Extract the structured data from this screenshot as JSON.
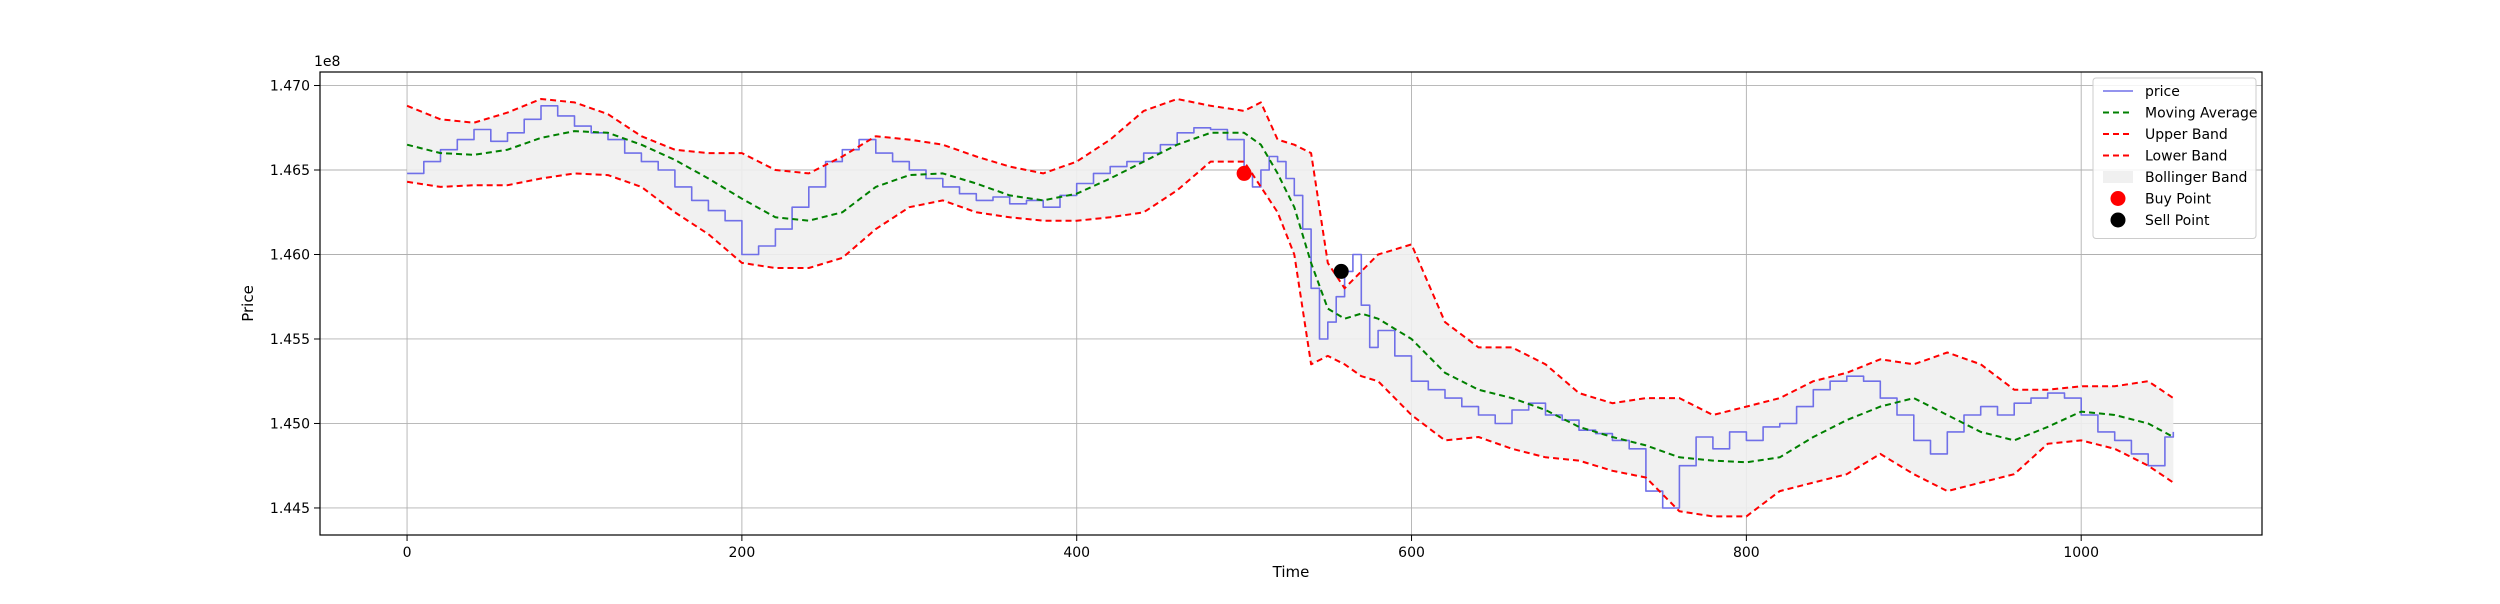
{
  "chart_data": {
    "type": "line",
    "title": "",
    "xlabel": "Time",
    "ylabel": "Price",
    "y_offset_label": "1e8",
    "xlim": [
      -52,
      1108
    ],
    "ylim": [
      1.4434,
      1.4708
    ],
    "x_ticks": [
      0,
      200,
      400,
      600,
      800,
      1000
    ],
    "x_tick_labels": [
      "0",
      "200",
      "400",
      "600",
      "800",
      "1000"
    ],
    "y_ticks": [
      1.445,
      1.45,
      1.455,
      1.46,
      1.465,
      1.47
    ],
    "y_tick_labels": [
      "1.445",
      "1.450",
      "1.455",
      "1.460",
      "1.465",
      "1.470"
    ],
    "grid": true,
    "legend_position": "top-right",
    "colors": {
      "price": "#7070e8",
      "moving_average": "#008000",
      "bands": "#ff0000",
      "band_fill": "#f0f0f0",
      "buy": "#ff0000",
      "sell": "#000000"
    },
    "series": [
      {
        "name": "price",
        "style": "solid",
        "x": [
          0,
          10,
          20,
          30,
          40,
          50,
          60,
          70,
          80,
          90,
          100,
          110,
          120,
          130,
          140,
          150,
          160,
          170,
          180,
          190,
          200,
          210,
          220,
          230,
          240,
          250,
          260,
          270,
          280,
          290,
          300,
          310,
          320,
          330,
          340,
          350,
          360,
          370,
          380,
          390,
          400,
          410,
          420,
          430,
          440,
          450,
          460,
          470,
          480,
          490,
          500,
          505,
          510,
          515,
          520,
          525,
          530,
          535,
          540,
          545,
          550,
          555,
          560,
          565,
          570,
          575,
          580,
          590,
          600,
          610,
          620,
          630,
          640,
          650,
          660,
          670,
          680,
          690,
          700,
          710,
          720,
          730,
          740,
          750,
          760,
          770,
          780,
          790,
          800,
          810,
          820,
          830,
          840,
          850,
          860,
          870,
          880,
          890,
          900,
          910,
          920,
          930,
          940,
          950,
          960,
          970,
          980,
          990,
          1000,
          1010,
          1020,
          1030,
          1040,
          1050,
          1055
        ],
        "values": [
          1.4648,
          1.4655,
          1.4662,
          1.4668,
          1.4674,
          1.4667,
          1.4672,
          1.468,
          1.4688,
          1.4682,
          1.4676,
          1.4672,
          1.4668,
          1.466,
          1.4655,
          1.465,
          1.464,
          1.4632,
          1.4626,
          1.462,
          1.46,
          1.4605,
          1.4615,
          1.4628,
          1.464,
          1.4655,
          1.4662,
          1.4668,
          1.466,
          1.4655,
          1.465,
          1.4645,
          1.464,
          1.4636,
          1.4632,
          1.4634,
          1.463,
          1.4632,
          1.4628,
          1.4635,
          1.4642,
          1.4648,
          1.4652,
          1.4655,
          1.466,
          1.4665,
          1.4672,
          1.4675,
          1.4674,
          1.4668,
          1.4648,
          1.464,
          1.465,
          1.4658,
          1.4655,
          1.4645,
          1.4635,
          1.4615,
          1.458,
          1.455,
          1.456,
          1.4575,
          1.459,
          1.46,
          1.457,
          1.4545,
          1.4555,
          1.454,
          1.4525,
          1.452,
          1.4515,
          1.451,
          1.4505,
          1.45,
          1.4508,
          1.4512,
          1.4505,
          1.4502,
          1.4496,
          1.4494,
          1.449,
          1.4485,
          1.446,
          1.445,
          1.4475,
          1.4492,
          1.4485,
          1.4495,
          1.449,
          1.4498,
          1.45,
          1.451,
          1.452,
          1.4525,
          1.4528,
          1.4525,
          1.4515,
          1.4505,
          1.449,
          1.4482,
          1.4495,
          1.4505,
          1.451,
          1.4505,
          1.4512,
          1.4515,
          1.4518,
          1.4515,
          1.4505,
          1.4495,
          1.449,
          1.4482,
          1.4475,
          1.4492,
          1.4495
        ]
      },
      {
        "name": "Moving Average",
        "style": "dashed",
        "x": [
          0,
          20,
          40,
          60,
          80,
          100,
          120,
          140,
          160,
          180,
          200,
          220,
          240,
          260,
          280,
          300,
          320,
          340,
          360,
          380,
          400,
          420,
          440,
          460,
          480,
          500,
          510,
          520,
          530,
          540,
          550,
          560,
          570,
          580,
          600,
          620,
          640,
          660,
          680,
          700,
          720,
          740,
          760,
          780,
          800,
          820,
          840,
          860,
          880,
          900,
          920,
          940,
          960,
          980,
          1000,
          1020,
          1040,
          1055
        ],
        "values": [
          1.4665,
          1.466,
          1.4659,
          1.4662,
          1.4669,
          1.4673,
          1.4672,
          1.4665,
          1.4656,
          1.4645,
          1.4633,
          1.4622,
          1.462,
          1.4625,
          1.464,
          1.4647,
          1.4648,
          1.4642,
          1.4635,
          1.4632,
          1.4636,
          1.4645,
          1.4655,
          1.4665,
          1.4672,
          1.4672,
          1.4665,
          1.4648,
          1.4628,
          1.4595,
          1.4568,
          1.4562,
          1.4565,
          1.4562,
          1.455,
          1.453,
          1.452,
          1.4515,
          1.4508,
          1.4498,
          1.4492,
          1.4487,
          1.448,
          1.4478,
          1.4477,
          1.448,
          1.4492,
          1.4502,
          1.451,
          1.4515,
          1.4505,
          1.4495,
          1.449,
          1.4498,
          1.4507,
          1.4505,
          1.45,
          1.4492
        ]
      },
      {
        "name": "Upper Band",
        "style": "dashed",
        "x": [
          0,
          20,
          40,
          60,
          80,
          100,
          120,
          140,
          160,
          180,
          200,
          220,
          240,
          260,
          280,
          300,
          320,
          340,
          360,
          380,
          400,
          420,
          440,
          460,
          480,
          500,
          510,
          520,
          530,
          540,
          550,
          560,
          570,
          580,
          600,
          620,
          640,
          660,
          680,
          700,
          720,
          740,
          760,
          780,
          800,
          820,
          840,
          860,
          880,
          900,
          920,
          940,
          960,
          980,
          1000,
          1020,
          1040,
          1055
        ],
        "values": [
          1.4688,
          1.468,
          1.4678,
          1.4684,
          1.4692,
          1.469,
          1.4683,
          1.467,
          1.4662,
          1.466,
          1.466,
          1.465,
          1.4648,
          1.4658,
          1.467,
          1.4668,
          1.4665,
          1.4658,
          1.4652,
          1.4648,
          1.4655,
          1.4668,
          1.4685,
          1.4692,
          1.4688,
          1.4685,
          1.469,
          1.4668,
          1.4665,
          1.466,
          1.4595,
          1.458,
          1.459,
          1.46,
          1.4606,
          1.456,
          1.4545,
          1.4545,
          1.4535,
          1.4518,
          1.4512,
          1.4515,
          1.4515,
          1.4505,
          1.451,
          1.4515,
          1.4525,
          1.453,
          1.4538,
          1.4535,
          1.4542,
          1.4535,
          1.452,
          1.452,
          1.4522,
          1.4522,
          1.4525,
          1.4515
        ]
      },
      {
        "name": "Lower Band",
        "style": "dashed",
        "x": [
          0,
          20,
          40,
          60,
          80,
          100,
          120,
          140,
          160,
          180,
          200,
          220,
          240,
          260,
          280,
          300,
          320,
          340,
          360,
          380,
          400,
          420,
          440,
          460,
          480,
          500,
          510,
          520,
          530,
          540,
          550,
          560,
          570,
          580,
          600,
          620,
          640,
          660,
          680,
          700,
          720,
          740,
          760,
          780,
          800,
          820,
          840,
          860,
          880,
          900,
          920,
          940,
          960,
          980,
          1000,
          1020,
          1040,
          1055
        ],
        "values": [
          1.4643,
          1.464,
          1.4641,
          1.4641,
          1.4645,
          1.4648,
          1.4647,
          1.464,
          1.4625,
          1.4612,
          1.4595,
          1.4592,
          1.4592,
          1.4598,
          1.4615,
          1.4628,
          1.4632,
          1.4625,
          1.4622,
          1.462,
          1.462,
          1.4622,
          1.4625,
          1.4638,
          1.4655,
          1.4655,
          1.464,
          1.4625,
          1.46,
          1.4535,
          1.454,
          1.4535,
          1.4528,
          1.4525,
          1.4505,
          1.449,
          1.4492,
          1.4485,
          1.448,
          1.4478,
          1.4472,
          1.4468,
          1.4448,
          1.4445,
          1.4445,
          1.446,
          1.4465,
          1.447,
          1.4482,
          1.447,
          1.446,
          1.4465,
          1.447,
          1.4488,
          1.449,
          1.4485,
          1.4475,
          1.4465
        ]
      }
    ],
    "band_fill_label": "Bollinger Band",
    "markers": [
      {
        "name": "Buy Point",
        "x": 500,
        "y": 1.4648
      },
      {
        "name": "Sell Point",
        "x": 558,
        "y": 1.459
      }
    ]
  }
}
